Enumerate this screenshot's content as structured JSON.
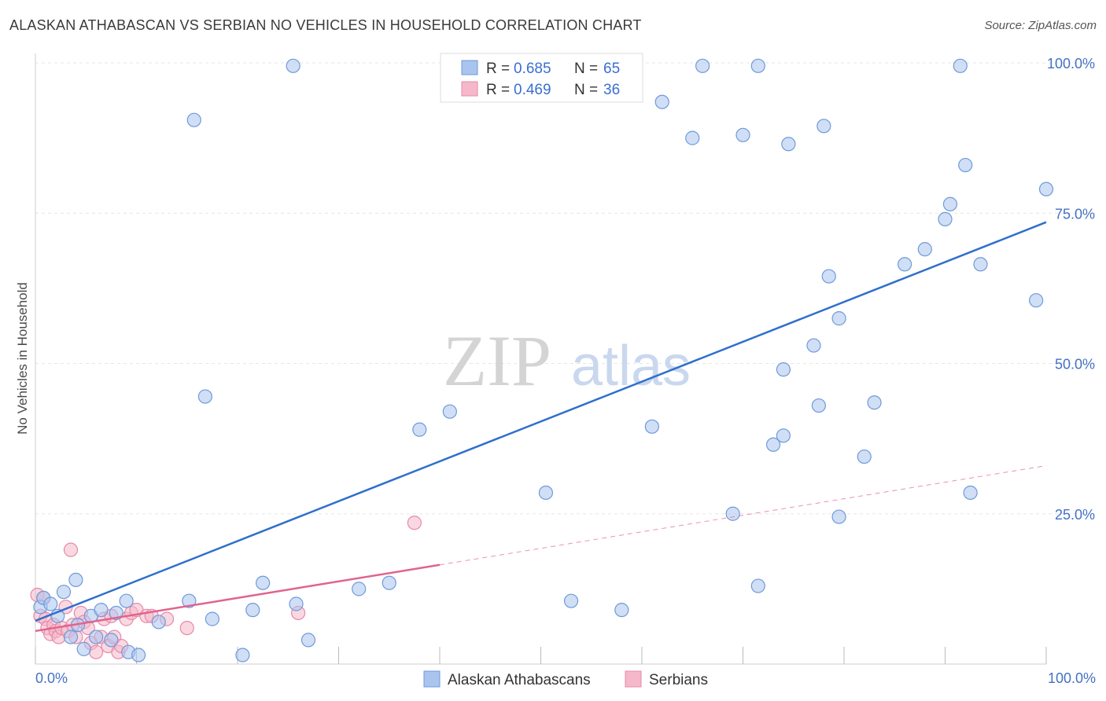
{
  "header": {
    "title": "ALASKAN ATHABASCAN VS SERBIAN NO VEHICLES IN HOUSEHOLD CORRELATION CHART",
    "source": "Source: ZipAtlas.com"
  },
  "watermark": {
    "zip": "ZIP",
    "atlas": "atlas"
  },
  "legend": {
    "r_label": "R =",
    "n_label": "N =",
    "rows": [
      {
        "r": "0.685",
        "n": "65",
        "color": "#a9c4ee"
      },
      {
        "r": "0.469",
        "n": "36",
        "color": "#f5b8cb"
      }
    ]
  },
  "chart_data": {
    "type": "scatter",
    "xlabel": "",
    "ylabel": "No Vehicles in Household",
    "xlim": [
      0,
      100
    ],
    "ylim": [
      0,
      100
    ],
    "x_tick_labels": [
      "0.0%",
      "100.0%"
    ],
    "y_tick_labels": [
      "25.0%",
      "50.0%",
      "75.0%",
      "100.0%"
    ],
    "y_ticks": [
      25,
      50,
      75,
      100
    ],
    "grid": true,
    "legend_position": "top-center",
    "series": [
      {
        "name": "Alaskan Athabascans",
        "color": "#a9c4ee",
        "stroke": "#6f9ad8",
        "trend": {
          "x": [
            0,
            100
          ],
          "y": [
            7.2,
            73.5
          ],
          "color": "#2f6fcd"
        },
        "points": [
          [
            0.5,
            9.5
          ],
          [
            0.8,
            11.0
          ],
          [
            1.5,
            10.0
          ],
          [
            2.2,
            8.0
          ],
          [
            2.8,
            12.0
          ],
          [
            3.5,
            4.5
          ],
          [
            4.0,
            14.0
          ],
          [
            4.2,
            6.5
          ],
          [
            4.8,
            2.5
          ],
          [
            5.5,
            8.0
          ],
          [
            6.0,
            4.5
          ],
          [
            6.5,
            9.0
          ],
          [
            7.5,
            4.0
          ],
          [
            8.0,
            8.5
          ],
          [
            9.0,
            10.5
          ],
          [
            9.2,
            2.0
          ],
          [
            10.2,
            1.5
          ],
          [
            12.2,
            7.0
          ],
          [
            15.2,
            10.5
          ],
          [
            15.7,
            90.5
          ],
          [
            16.8,
            44.5
          ],
          [
            17.5,
            7.5
          ],
          [
            20.5,
            1.5
          ],
          [
            21.5,
            9.0
          ],
          [
            22.5,
            13.5
          ],
          [
            25.5,
            99.5
          ],
          [
            25.8,
            10.0
          ],
          [
            27.0,
            4.0
          ],
          [
            32.0,
            12.5
          ],
          [
            35.0,
            13.5
          ],
          [
            38.0,
            39.0
          ],
          [
            41.0,
            42.0
          ],
          [
            50.5,
            28.5
          ],
          [
            53.0,
            10.5
          ],
          [
            58.0,
            9.0
          ],
          [
            61.0,
            39.5
          ],
          [
            62.0,
            93.5
          ],
          [
            65.0,
            87.5
          ],
          [
            66.0,
            99.5
          ],
          [
            69.0,
            25.0
          ],
          [
            70.0,
            88.0
          ],
          [
            71.5,
            99.5
          ],
          [
            71.5,
            13.0
          ],
          [
            73.0,
            36.5
          ],
          [
            74.0,
            38.0
          ],
          [
            74.5,
            86.5
          ],
          [
            74.0,
            49.0
          ],
          [
            77.0,
            53.0
          ],
          [
            77.5,
            43.0
          ],
          [
            78.0,
            89.5
          ],
          [
            78.5,
            64.5
          ],
          [
            79.5,
            57.5
          ],
          [
            79.5,
            24.5
          ],
          [
            82.0,
            34.5
          ],
          [
            83.0,
            43.5
          ],
          [
            86.0,
            66.5
          ],
          [
            88.0,
            69.0
          ],
          [
            90.0,
            74.0
          ],
          [
            90.5,
            76.5
          ],
          [
            91.5,
            99.5
          ],
          [
            92.0,
            83.0
          ],
          [
            92.5,
            28.5
          ],
          [
            93.5,
            66.5
          ],
          [
            99.0,
            60.5
          ],
          [
            100.0,
            79.0
          ]
        ]
      },
      {
        "name": "Serbians",
        "color": "#f5b8cb",
        "stroke": "#e58aa8",
        "trend": {
          "x": [
            0,
            40
          ],
          "y": [
            5.5,
            16.5
          ],
          "color": "#e0648e",
          "dashed_extension": {
            "x": [
              40,
              100
            ],
            "y": [
              16.5,
              33.0
            ]
          }
        },
        "points": [
          [
            0.2,
            11.5
          ],
          [
            0.5,
            8.0
          ],
          [
            0.8,
            11.0
          ],
          [
            1.0,
            7.5
          ],
          [
            1.2,
            6.0
          ],
          [
            1.5,
            5.0
          ],
          [
            1.8,
            6.5
          ],
          [
            2.0,
            5.5
          ],
          [
            2.3,
            4.5
          ],
          [
            2.6,
            6.0
          ],
          [
            3.0,
            9.5
          ],
          [
            3.2,
            5.5
          ],
          [
            3.5,
            19.0
          ],
          [
            3.7,
            6.5
          ],
          [
            4.0,
            4.5
          ],
          [
            4.5,
            8.5
          ],
          [
            4.8,
            7.0
          ],
          [
            5.2,
            6.0
          ],
          [
            5.5,
            3.5
          ],
          [
            6.0,
            2.0
          ],
          [
            6.5,
            4.5
          ],
          [
            6.8,
            7.5
          ],
          [
            7.2,
            3.0
          ],
          [
            7.5,
            8.0
          ],
          [
            7.8,
            4.5
          ],
          [
            8.2,
            2.0
          ],
          [
            8.5,
            3.0
          ],
          [
            9.0,
            7.5
          ],
          [
            9.5,
            8.5
          ],
          [
            10.0,
            9.0
          ],
          [
            11.0,
            8.0
          ],
          [
            11.5,
            8.0
          ],
          [
            13.0,
            7.5
          ],
          [
            15.0,
            6.0
          ],
          [
            26.0,
            8.5
          ],
          [
            37.5,
            23.5
          ]
        ]
      }
    ]
  },
  "bottom_legend": [
    {
      "label": "Alaskan Athabascans"
    },
    {
      "label": "Serbians"
    }
  ]
}
